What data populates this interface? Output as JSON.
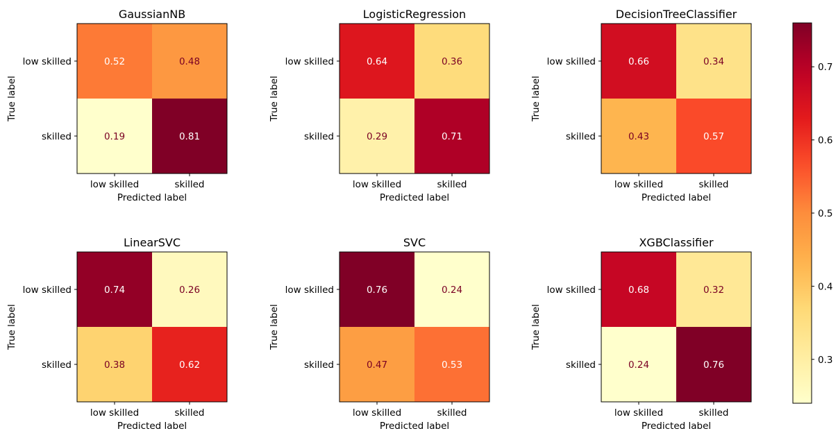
{
  "chart_data": {
    "type": "heatmap",
    "cmap": "YlOrRd",
    "colorbar": {
      "vmin": 0.24,
      "vmax": 0.76,
      "ticks": [
        "0.3",
        "0.4",
        "0.5",
        "0.6",
        "0.7"
      ]
    },
    "matrices": [
      {
        "title": "GaussianNB",
        "true_labels": [
          "low skilled",
          "skilled"
        ],
        "predicted_labels": [
          "low skilled",
          "skilled"
        ],
        "xlabel": "Predicted label",
        "ylabel": "True label",
        "values": [
          [
            0.52,
            0.48
          ],
          [
            0.19,
            0.81
          ]
        ]
      },
      {
        "title": "LogisticRegression",
        "true_labels": [
          "low skilled",
          "skilled"
        ],
        "predicted_labels": [
          "low skilled",
          "skilled"
        ],
        "xlabel": "Predicted label",
        "ylabel": "True label",
        "values": [
          [
            0.64,
            0.36
          ],
          [
            0.29,
            0.71
          ]
        ]
      },
      {
        "title": "DecisionTreeClassifier",
        "true_labels": [
          "low skilled",
          "skilled"
        ],
        "predicted_labels": [
          "low skilled",
          "skilled"
        ],
        "xlabel": "Predicted label",
        "ylabel": "True label",
        "values": [
          [
            0.66,
            0.34
          ],
          [
            0.43,
            0.57
          ]
        ]
      },
      {
        "title": "LinearSVC",
        "true_labels": [
          "low skilled",
          "skilled"
        ],
        "predicted_labels": [
          "low skilled",
          "skilled"
        ],
        "xlabel": "Predicted label",
        "ylabel": "True label",
        "values": [
          [
            0.74,
            0.26
          ],
          [
            0.38,
            0.62
          ]
        ]
      },
      {
        "title": "SVC",
        "true_labels": [
          "low skilled",
          "skilled"
        ],
        "predicted_labels": [
          "low skilled",
          "skilled"
        ],
        "xlabel": "Predicted label",
        "ylabel": "True label",
        "values": [
          [
            0.76,
            0.24
          ],
          [
            0.47,
            0.53
          ]
        ]
      },
      {
        "title": "XGBClassifier",
        "true_labels": [
          "low skilled",
          "skilled"
        ],
        "predicted_labels": [
          "low skilled",
          "skilled"
        ],
        "xlabel": "Predicted label",
        "ylabel": "True label",
        "values": [
          [
            0.68,
            0.32
          ],
          [
            0.24,
            0.76
          ]
        ]
      }
    ]
  },
  "colors": {
    "text_dark": "#7a0023",
    "text_light": "#ffffff",
    "frame": "#000000"
  }
}
